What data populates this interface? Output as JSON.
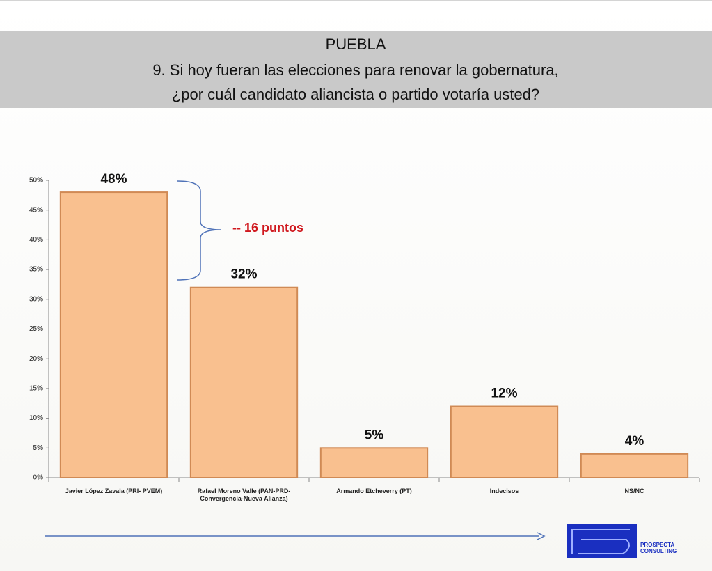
{
  "chart_data": {
    "type": "bar",
    "title": "PUEBLA",
    "subtitle": [
      "9. Si hoy fueran las elecciones para renovar la gobernatura,",
      "¿por cuál candidato aliancista o partido votaría usted?"
    ],
    "categories": [
      "Javier López Zavala (PRI- PVEM)",
      "Rafael Moreno Valle (PAN-PRD-Convergencia-Nueva Alianza)",
      "Armando Etcheverry (PT)",
      "Indecisos",
      "NS/NC"
    ],
    "values": [
      48,
      32,
      5,
      12,
      4
    ],
    "value_labels": [
      "48%",
      "32%",
      "5%",
      "12%",
      "4%"
    ],
    "color": "#f9c08f",
    "ylim": [
      0,
      50
    ],
    "yticks": [
      {
        "value": 0,
        "label": "0%"
      },
      {
        "value": 5,
        "label": "5%"
      },
      {
        "value": 10,
        "label": "10%"
      },
      {
        "value": 15,
        "label": "15%"
      },
      {
        "value": 20,
        "label": "20%"
      },
      {
        "value": 25,
        "label": "25%"
      },
      {
        "value": 30,
        "label": "30%"
      },
      {
        "value": 35,
        "label": "35%"
      },
      {
        "value": 40,
        "label": "40%"
      },
      {
        "value": 45,
        "label": "45%"
      },
      {
        "value": 50,
        "label": "50%"
      }
    ],
    "annotations": [
      "-- 16 puntos"
    ]
  },
  "footer": {
    "logo": "PROSPECTA CONSULTING"
  }
}
